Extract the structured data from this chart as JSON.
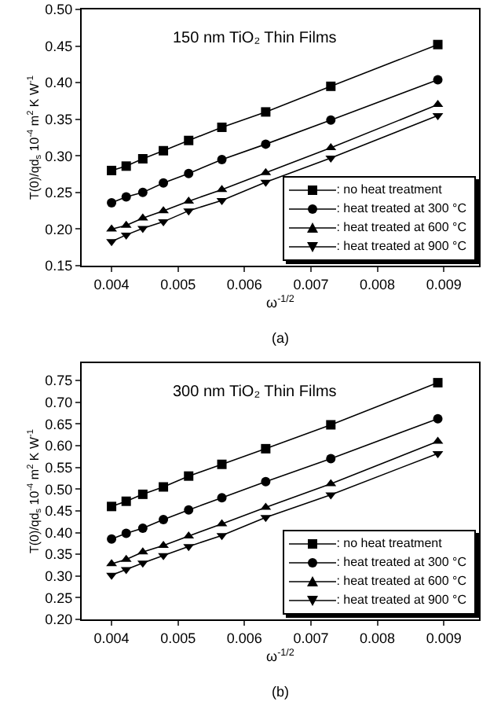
{
  "chart_data": [
    {
      "type": "line",
      "title": "150 nm TiO₂ Thin Films",
      "xlabel": "ω$^{-1/2}$",
      "ylabel": "T(0)/qd$_{s}$ 10$^{-4}$ m$^{2}$ K W$^{-1}$",
      "annotations": [
        "(a)"
      ],
      "x": [
        0.004,
        0.00422,
        0.00447,
        0.00478,
        0.00516,
        0.00566,
        0.00632,
        0.0073,
        0.00891
      ],
      "series": [
        {
          "name": ": no heat treatment",
          "color": "#000000",
          "marker": "square",
          "values": [
            0.28,
            0.286,
            0.296,
            0.307,
            0.321,
            0.339,
            0.36,
            0.395,
            0.452
          ]
        },
        {
          "name": ": heat treated at 300 °C",
          "color": "#000000",
          "marker": "circle",
          "values": [
            0.236,
            0.244,
            0.25,
            0.263,
            0.276,
            0.295,
            0.316,
            0.349,
            0.404
          ]
        },
        {
          "name": ": heat treated at 600 °C",
          "color": "#000000",
          "marker": "triangle",
          "values": [
            0.2,
            0.205,
            0.215,
            0.225,
            0.238,
            0.254,
            0.277,
            0.311,
            0.37
          ]
        },
        {
          "name": ": heat treated at 900 °C",
          "color": "#000000",
          "marker": "triangle-down",
          "values": [
            0.183,
            0.192,
            0.201,
            0.21,
            0.225,
            0.239,
            0.264,
            0.297,
            0.355
          ]
        }
      ],
      "xlim": [
        0.00355,
        0.00953
      ],
      "xticks": [
        0.004,
        0.005,
        0.006,
        0.007,
        0.008,
        0.009
      ],
      "ylim": [
        0.15,
        0.5
      ],
      "yticks": [
        0.15,
        {
          "value": 0.2,
          "label": "0.20"
        },
        0.25,
        {
          "value": 0.3,
          "label": "0.30"
        },
        0.35,
        {
          "value": 0.4,
          "label": "0.40"
        },
        0.45,
        {
          "value": 0.5,
          "label": "0.50"
        }
      ],
      "grid": false,
      "legend": "bottom right",
      "line_style": "solid"
    },
    {
      "type": "line",
      "title": "300 nm TiO₂ Thin Films",
      "xlabel": "ω$^{-1/2}$",
      "ylabel": "T(0)/qd$_{s}$ 10$^{-4}$ m$^{2}$ K W$^{-1}$",
      "annotations": [
        "(b)"
      ],
      "x": [
        0.004,
        0.00422,
        0.00447,
        0.00478,
        0.00516,
        0.00566,
        0.00632,
        0.0073,
        0.00891
      ],
      "series": [
        {
          "name": ": no heat treatment",
          "color": "#000000",
          "marker": "square",
          "values": [
            0.46,
            0.472,
            0.488,
            0.505,
            0.53,
            0.557,
            0.593,
            0.648,
            0.745
          ]
        },
        {
          "name": ": heat treated at 300 °C",
          "color": "#000000",
          "marker": "circle",
          "values": [
            0.385,
            0.398,
            0.41,
            0.43,
            0.452,
            0.48,
            0.517,
            0.57,
            0.662
          ]
        },
        {
          "name": ": heat treated at 600 °C",
          "color": "#000000",
          "marker": "triangle",
          "values": [
            0.328,
            0.338,
            0.355,
            0.37,
            0.392,
            0.42,
            0.458,
            0.512,
            0.61
          ]
        },
        {
          "name": ": heat treated at 900 °C",
          "color": "#000000",
          "marker": "triangle-down",
          "values": [
            0.302,
            0.315,
            0.33,
            0.347,
            0.368,
            0.393,
            0.435,
            0.487,
            0.582
          ]
        }
      ],
      "xlim": [
        0.00355,
        0.00953
      ],
      "xticks": [
        0.004,
        0.005,
        0.006,
        0.007,
        0.008,
        0.009
      ],
      "ylim": [
        0.2,
        0.79
      ],
      "yticks": [
        {
          "value": 0.2,
          "label": "0.20"
        },
        0.25,
        {
          "value": 0.3,
          "label": "0.30"
        },
        0.35,
        {
          "value": 0.4,
          "label": "0.40"
        },
        0.45,
        {
          "value": 0.5,
          "label": "0.50"
        },
        0.55,
        {
          "value": 0.6,
          "label": "0.60"
        },
        0.65,
        {
          "value": 0.7,
          "label": "0.70"
        },
        0.75
      ],
      "grid": false,
      "legend": "bottom right",
      "line_style": "solid"
    }
  ]
}
